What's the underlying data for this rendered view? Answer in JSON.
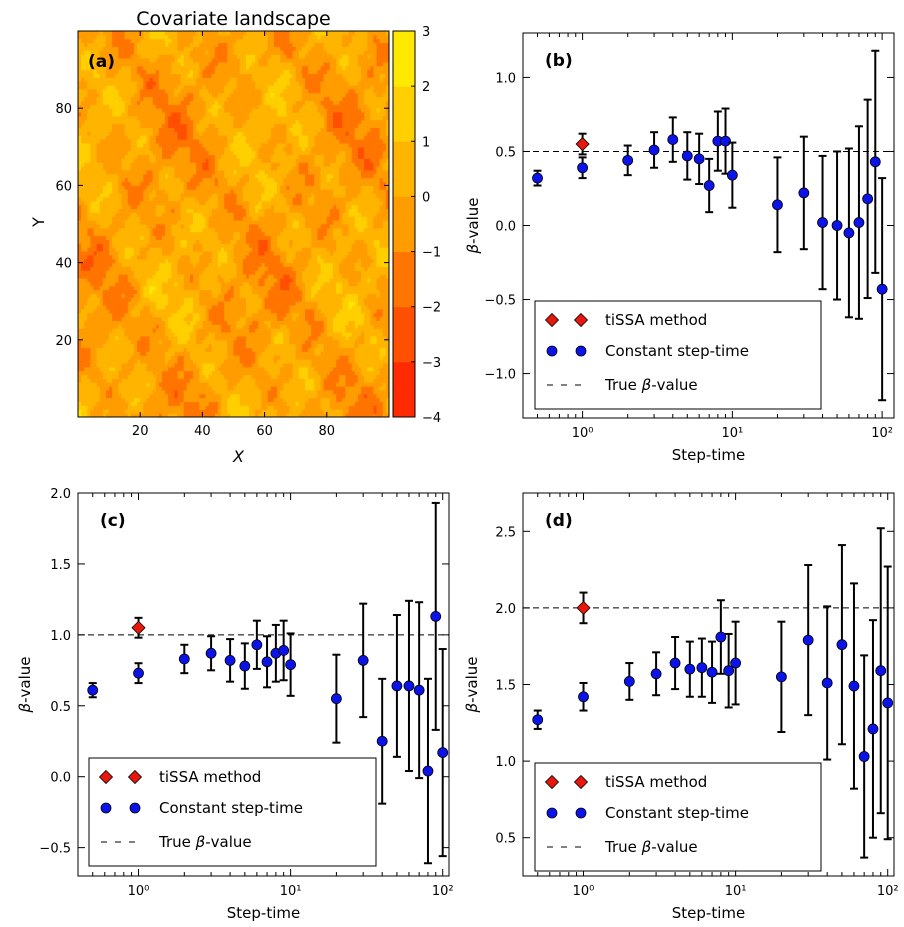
{
  "chart_data": [
    {
      "panel": "a",
      "type": "heatmap",
      "title": "Covariate landscape",
      "panel_label": "(a)",
      "xlabel": "X",
      "ylabel": "Y",
      "xlim": [
        0,
        100
      ],
      "ylim": [
        0,
        100
      ],
      "xticks": [
        20,
        40,
        60,
        80
      ],
      "yticks": [
        20,
        40,
        60,
        80
      ],
      "colorbar": {
        "ticks": [
          -4,
          -3,
          -2,
          -1,
          0,
          1,
          2,
          3
        ],
        "levels": [
          -4,
          -3,
          -2,
          -1,
          0,
          1,
          2,
          3
        ],
        "colors": [
          "#ff2a00",
          "#ff4f00",
          "#ff7500",
          "#ff9c00",
          "#ffb400",
          "#ffcf00",
          "#ffe900"
        ]
      },
      "grid": false
    },
    {
      "panel": "b",
      "type": "scatter",
      "panel_label": "(b)",
      "xlabel": "Step-time",
      "ylabel": "β-value",
      "xscale": "log",
      "xlim": [
        0.4,
        120
      ],
      "ylim": [
        -1.3,
        1.3
      ],
      "xticks": [
        1,
        10,
        100
      ],
      "xtick_labels": [
        "10⁰",
        "10¹",
        "10²"
      ],
      "yticks": [
        -1.0,
        -0.5,
        0.0,
        0.5,
        1.0
      ],
      "true_value": 0.5,
      "legend_position": "lower-left",
      "legend": [
        {
          "label": "tiSSA method",
          "marker": "diamond",
          "color": "#e8170b"
        },
        {
          "label": "Constant step-time",
          "marker": "circle",
          "color": "#0b13e8"
        },
        {
          "label": "True β-value",
          "marker": "dashed-line",
          "color": "#000000"
        }
      ],
      "series": [
        {
          "name": "tiSSA method",
          "x": [
            1
          ],
          "y": [
            0.55
          ],
          "err": [
            0.07
          ]
        },
        {
          "name": "Constant step-time",
          "x": [
            0.5,
            1,
            2,
            3,
            4,
            5,
            6,
            7,
            8,
            9,
            10,
            20,
            30,
            40,
            50,
            60,
            70,
            80,
            90,
            100
          ],
          "y": [
            0.32,
            0.39,
            0.44,
            0.51,
            0.58,
            0.47,
            0.45,
            0.27,
            0.57,
            0.57,
            0.34,
            0.14,
            0.22,
            0.02,
            0.0,
            -0.05,
            0.02,
            0.18,
            0.43,
            -0.43
          ],
          "err": [
            0.05,
            0.07,
            0.1,
            0.12,
            0.15,
            0.16,
            0.17,
            0.18,
            0.2,
            0.22,
            0.22,
            0.32,
            0.38,
            0.45,
            0.5,
            0.57,
            0.65,
            0.67,
            0.75,
            0.75
          ]
        }
      ]
    },
    {
      "panel": "c",
      "type": "scatter",
      "panel_label": "(c)",
      "xlabel": "Step-time",
      "ylabel": "β-value",
      "xscale": "log",
      "xlim": [
        0.4,
        110
      ],
      "ylim": [
        -0.7,
        2.0
      ],
      "xticks": [
        1,
        10,
        100
      ],
      "xtick_labels": [
        "10⁰",
        "10¹",
        "10²"
      ],
      "yticks": [
        -0.5,
        0.0,
        0.5,
        1.0,
        1.5,
        2.0
      ],
      "true_value": 1.0,
      "legend_position": "lower-left",
      "legend": [
        {
          "label": "tiSSA method",
          "marker": "diamond",
          "color": "#e8170b"
        },
        {
          "label": "Constant step-time",
          "marker": "circle",
          "color": "#0b13e8"
        },
        {
          "label": "True β-value",
          "marker": "dashed-line",
          "color": "#000000"
        }
      ],
      "series": [
        {
          "name": "tiSSA method",
          "x": [
            1
          ],
          "y": [
            1.05
          ],
          "err": [
            0.07
          ]
        },
        {
          "name": "Constant step-time",
          "x": [
            0.5,
            1,
            2,
            3,
            4,
            5,
            6,
            7,
            8,
            9,
            10,
            20,
            30,
            40,
            50,
            60,
            70,
            80,
            90,
            100
          ],
          "y": [
            0.61,
            0.73,
            0.83,
            0.87,
            0.82,
            0.78,
            0.93,
            0.81,
            0.87,
            0.89,
            0.79,
            0.55,
            0.82,
            0.25,
            0.64,
            0.64,
            0.61,
            0.04,
            1.13,
            0.17
          ],
          "err": [
            0.05,
            0.07,
            0.1,
            0.12,
            0.15,
            0.16,
            0.17,
            0.18,
            0.2,
            0.21,
            0.22,
            0.31,
            0.4,
            0.44,
            0.5,
            0.6,
            0.62,
            0.65,
            0.8,
            0.73
          ]
        }
      ]
    },
    {
      "panel": "d",
      "type": "scatter",
      "panel_label": "(d)",
      "xlabel": "Step-time",
      "ylabel": "β-value",
      "xscale": "log",
      "xlim": [
        0.4,
        110
      ],
      "ylim": [
        0.25,
        2.75
      ],
      "xticks": [
        1,
        10,
        100
      ],
      "xtick_labels": [
        "10⁰",
        "10¹",
        "10²"
      ],
      "yticks": [
        0.5,
        1.0,
        1.5,
        2.0,
        2.5
      ],
      "true_value": 2.0,
      "legend_position": "lower-left",
      "legend": [
        {
          "label": "tiSSA method",
          "marker": "diamond",
          "color": "#e8170b"
        },
        {
          "label": "Constant step-time",
          "marker": "circle",
          "color": "#0b13e8"
        },
        {
          "label": "True β-value",
          "marker": "dashed-line",
          "color": "#000000"
        }
      ],
      "series": [
        {
          "name": "tiSSA method",
          "x": [
            1
          ],
          "y": [
            2.0
          ],
          "err": [
            0.1
          ]
        },
        {
          "name": "Constant step-time",
          "x": [
            0.5,
            1,
            2,
            3,
            4,
            5,
            6,
            7,
            8,
            9,
            10,
            20,
            30,
            40,
            50,
            60,
            70,
            80,
            90,
            100
          ],
          "y": [
            1.27,
            1.42,
            1.52,
            1.57,
            1.64,
            1.6,
            1.61,
            1.58,
            1.81,
            1.59,
            1.64,
            1.55,
            1.79,
            1.51,
            1.76,
            1.49,
            1.03,
            1.21,
            1.59,
            1.38
          ],
          "err": [
            0.06,
            0.09,
            0.12,
            0.14,
            0.17,
            0.18,
            0.19,
            0.2,
            0.24,
            0.24,
            0.27,
            0.36,
            0.49,
            0.5,
            0.65,
            0.67,
            0.66,
            0.71,
            0.93,
            0.89
          ]
        }
      ]
    }
  ]
}
